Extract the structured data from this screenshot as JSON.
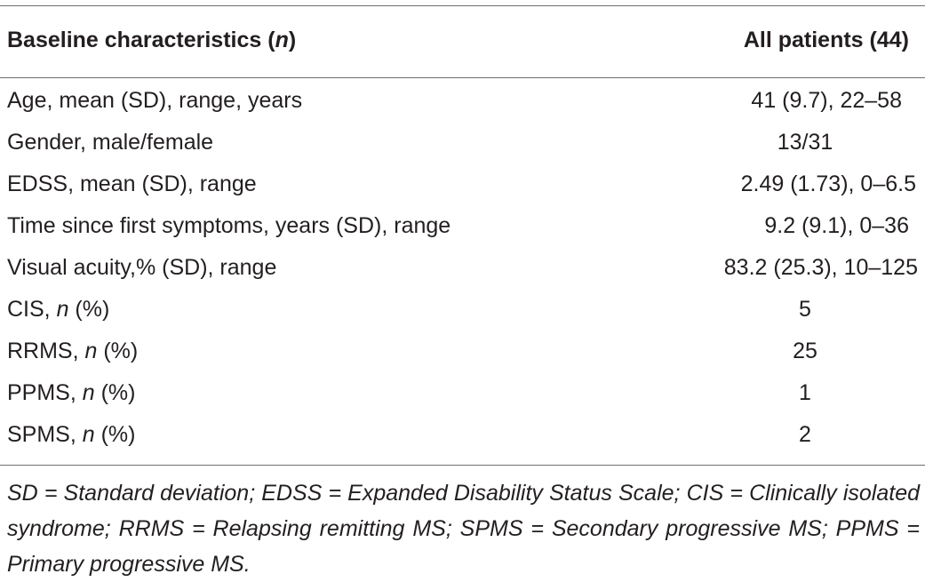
{
  "header": {
    "col1_text": "Baseline characteristics (",
    "col1_italic": "n",
    "col1_close": ")",
    "col2": "All patients (44)"
  },
  "rows": [
    {
      "label_pre": "Age, mean (SD), range, years",
      "label_italic": "",
      "label_post": "",
      "value": "41 (9.7), 22–58"
    },
    {
      "label_pre": "Gender, male/female",
      "label_italic": "",
      "label_post": "",
      "value": "13/31"
    },
    {
      "label_pre": "EDSS, mean (SD), range",
      "label_italic": "",
      "label_post": "",
      "value": "2.49 (1.73), 0–6.5"
    },
    {
      "label_pre": "Time since first symptoms, years (SD), range",
      "label_italic": "",
      "label_post": "",
      "value": "9.2 (9.1), 0–36"
    },
    {
      "label_pre": "Visual acuity,% (SD), range",
      "label_italic": "",
      "label_post": "",
      "value": "83.2 (25.3), 10–125"
    },
    {
      "label_pre": "CIS, ",
      "label_italic": "n",
      "label_post": " (%)",
      "value": "5"
    },
    {
      "label_pre": "RRMS, ",
      "label_italic": "n",
      "label_post": " (%)",
      "value": "25"
    },
    {
      "label_pre": "PPMS, ",
      "label_italic": "n",
      "label_post": " (%)",
      "value": "1"
    },
    {
      "label_pre": "SPMS, ",
      "label_italic": "n",
      "label_post": " (%)",
      "value": "2"
    }
  ],
  "footnote": "SD = Standard deviation; EDSS = Expanded Disability Status Scale; CIS = Clinically isolated syndrome; RRMS = Relapsing remitting MS; SPMS = Secondary progressive MS; PPMS = Primary progressive MS."
}
